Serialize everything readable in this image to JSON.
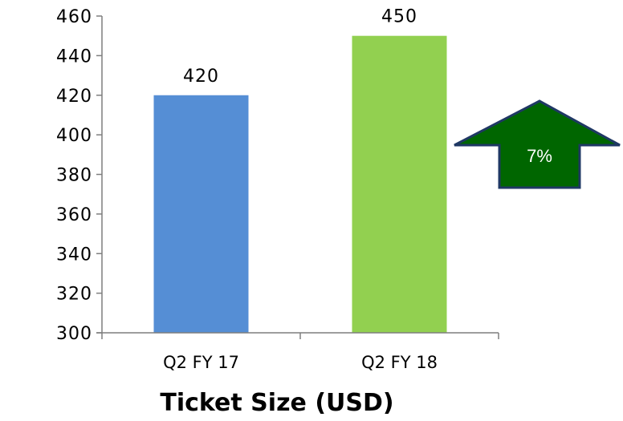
{
  "chart_data": {
    "type": "bar",
    "title": "Ticket Size (USD)",
    "categories": [
      "Q2 FY 17",
      "Q2 FY 18"
    ],
    "values": [
      420,
      450
    ],
    "data_labels": [
      "420",
      "450"
    ],
    "bar_colors": [
      "#558ED5",
      "#92D050"
    ],
    "ylim": [
      300,
      460
    ],
    "yticks": [
      300,
      320,
      340,
      360,
      380,
      400,
      420,
      440,
      460
    ],
    "grid": false,
    "legend": "none"
  },
  "annotation": {
    "shape": "up-arrow",
    "text": "7%",
    "fill_color": "#006600",
    "border_color": "#1F3864",
    "text_color": "#FFFFFF"
  },
  "axis_color": "#7F7F7F"
}
